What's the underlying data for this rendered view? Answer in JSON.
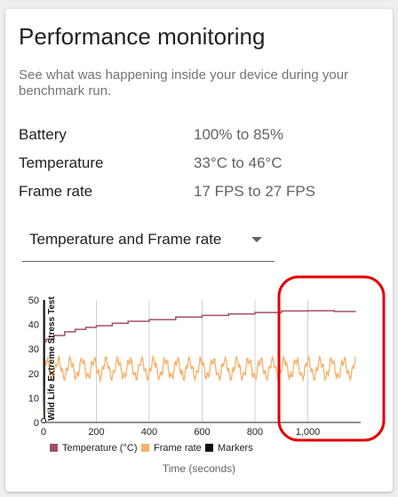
{
  "header": {
    "title": "Performance monitoring",
    "subtitle": "See what was happening inside your device during your benchmark run."
  },
  "stats": [
    {
      "label": "Battery",
      "value": "100% to 85%"
    },
    {
      "label": "Temperature",
      "value": "33°C to 46°C"
    },
    {
      "label": "Frame rate",
      "value": "17 FPS to 27 FPS"
    }
  ],
  "selector": {
    "selected": "Temperature and Frame rate"
  },
  "colors": {
    "temperature": "#a05068",
    "frame_rate": "#f5b26b",
    "markers": "#111111",
    "highlight": "#e00000"
  },
  "chart_data": {
    "type": "line",
    "xlabel": "Time (seconds)",
    "xlim": [
      0,
      1200
    ],
    "ylim": [
      0,
      50
    ],
    "x_ticks": [
      0,
      200,
      400,
      600,
      800,
      1000
    ],
    "x_tick_labels": [
      "0",
      "200",
      "400",
      "600",
      "800",
      "1,000"
    ],
    "y_ticks": [
      0,
      10,
      20,
      30,
      40,
      50
    ],
    "y_tick_labels": [
      "0",
      "10",
      "20",
      "30",
      "40",
      "50"
    ],
    "grid": "vertical",
    "legend_position": "bottom",
    "series": [
      {
        "name": "Temperature (°C)",
        "color": "#a05068",
        "x": [
          0,
          10,
          40,
          80,
          120,
          160,
          200,
          260,
          320,
          400,
          500,
          600,
          700,
          800,
          900,
          1000,
          1100,
          1180
        ],
        "y": [
          33,
          34,
          35.5,
          37,
          38,
          38.8,
          39.5,
          40.5,
          41.3,
          42,
          43,
          43.7,
          44.3,
          44.9,
          45.5,
          45.6,
          45.3,
          45.5
        ]
      },
      {
        "name": "Frame rate",
        "color": "#f5b26b",
        "x": [
          0,
          1180
        ],
        "y_range": [
          17,
          27
        ],
        "period": 45
      },
      {
        "name": "Markers",
        "color": "#111111",
        "events": [
          {
            "x": 0,
            "label": "Wild Life Extreme Stress Test"
          }
        ]
      }
    ]
  }
}
